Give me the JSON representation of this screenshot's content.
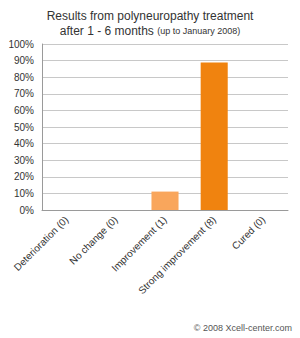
{
  "chart_data": {
    "type": "bar",
    "title": "Results from polyneuropathy treatment",
    "subtitle": "after 1 - 6 months",
    "annotations": [
      "(up to January 2008)",
      "© 2008 Xcell-center.com"
    ],
    "categories": [
      "Deterioration (0)",
      "No change (0)",
      "Improvement (1)",
      "Strong improvement (8)",
      "Cured (0)"
    ],
    "values": [
      0,
      0,
      11.1,
      88.9,
      0
    ],
    "colors": [
      "#f7a65a",
      "#f7a65a",
      "#f9a65c",
      "#f0830f",
      "#f0830f"
    ],
    "ylim": [
      0,
      100
    ],
    "yticks": [
      {
        "value": 0,
        "label": "0%"
      },
      {
        "value": 10,
        "label": "10%"
      },
      {
        "value": 20,
        "label": "20%"
      },
      {
        "value": 30,
        "label": "30%"
      },
      {
        "value": 40,
        "label": "40%"
      },
      {
        "value": 50,
        "label": "50%"
      },
      {
        "value": 60,
        "label": "60%"
      },
      {
        "value": 70,
        "label": "70%"
      },
      {
        "value": 80,
        "label": "80%"
      },
      {
        "value": 90,
        "label": "90%"
      },
      {
        "value": 100,
        "label": "100%"
      }
    ],
    "grid": true
  }
}
